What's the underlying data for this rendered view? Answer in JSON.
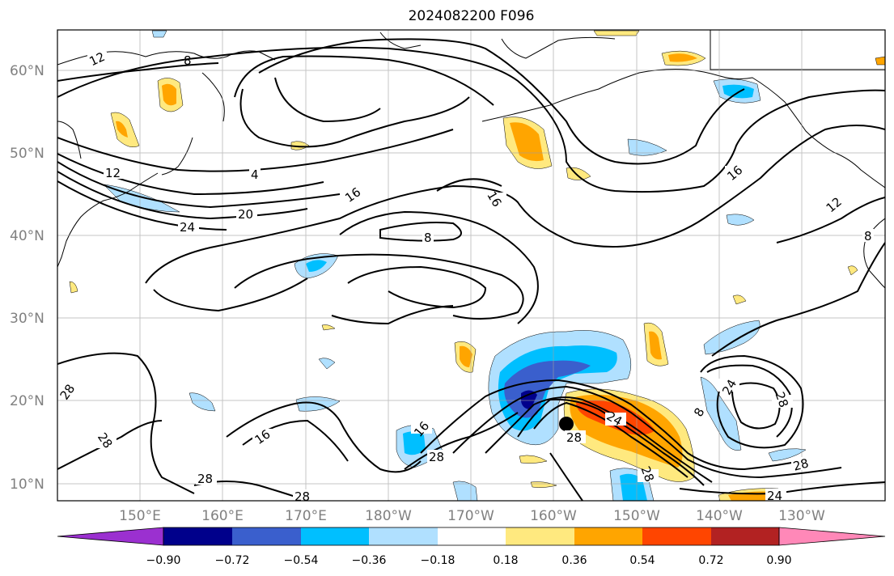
{
  "title": "2024082200 F096",
  "lat_labels": [
    "60°N",
    "50°N",
    "40°N",
    "30°N",
    "20°N",
    "10°N"
  ],
  "lon_labels": [
    "150°E",
    "160°E",
    "170°E",
    "180°W",
    "170°W",
    "160°W",
    "150°W",
    "140°W",
    "130°W"
  ],
  "colorbar": {
    "colors": [
      "#9b30d0",
      "#00008b",
      "#3a5fcd",
      "#00bfff",
      "#b0e0ff",
      "#ffffff",
      "#ffe97f",
      "#ffa500",
      "#ff4500",
      "#b22222",
      "#ff88b8"
    ],
    "tick_labels": [
      "−0.90",
      "−0.72",
      "−0.54",
      "−0.36",
      "−0.18",
      "0.18",
      "0.36",
      "0.54",
      "0.72",
      "0.90"
    ]
  },
  "contour_labels": [
    "12",
    "8",
    "4",
    "12",
    "20",
    "24",
    "16",
    "16",
    "8",
    "16",
    "12",
    "8",
    "28",
    "28",
    "16",
    "28",
    "28",
    "28",
    "24",
    "28",
    "8",
    "24",
    "28",
    "24",
    "28",
    "16",
    "28"
  ],
  "map": {
    "extent": {
      "lon_min": 140,
      "lon_max": 240,
      "lat_min": 8,
      "lat_max": 65
    },
    "gridlines": true,
    "marker": {
      "label": "storm center",
      "lat": 17,
      "lon": 201
    }
  }
}
